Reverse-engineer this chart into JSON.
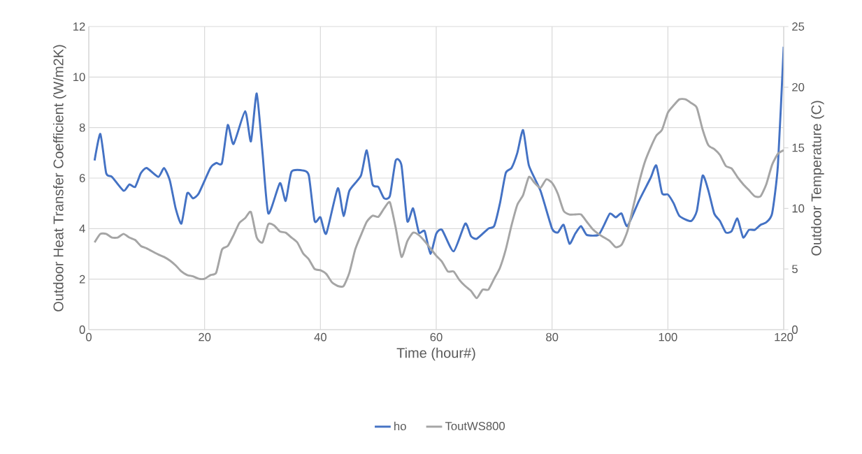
{
  "chart_data": {
    "type": "line",
    "xlabel": "Time (hour#)",
    "ylabel": "Outdoor Heat Transfer Coefficient (W/m2K)",
    "y2label": "Outdoor Temperature (C)",
    "xlim": [
      0,
      120
    ],
    "xticks": [
      0,
      20,
      40,
      60,
      80,
      100,
      120
    ],
    "ylim": [
      0,
      12
    ],
    "yticks": [
      0,
      2,
      4,
      6,
      8,
      10,
      12
    ],
    "y2lim": [
      0,
      25
    ],
    "y2ticks": [
      0,
      5,
      10,
      15,
      20,
      25
    ],
    "grid": true,
    "legend": "bottom",
    "series": [
      {
        "name": "ho",
        "color": "#4472c4",
        "x": [
          1,
          2,
          3,
          4,
          6,
          7,
          8,
          9,
          10,
          12,
          13,
          14,
          15,
          16,
          17,
          18,
          19,
          21,
          22,
          23,
          24,
          25,
          27,
          28,
          29,
          30,
          31,
          33,
          34,
          35,
          37,
          38,
          39,
          40,
          41,
          43,
          44,
          45,
          47,
          48,
          49,
          50,
          51,
          52,
          53,
          54,
          55,
          56,
          57,
          58,
          59,
          60,
          61,
          63,
          65,
          66,
          67,
          69,
          70,
          71,
          72,
          73,
          74,
          75,
          76,
          78,
          80,
          81,
          82,
          83,
          84,
          85,
          86,
          88,
          89,
          90,
          91,
          92,
          93,
          95,
          97,
          98,
          99,
          100,
          101,
          102,
          104,
          105,
          106,
          107,
          108,
          109,
          110,
          111,
          112,
          113,
          114,
          115,
          116,
          117,
          118,
          119,
          120
        ],
        "values": [
          6.7,
          7.75,
          6.2,
          6.05,
          5.5,
          5.75,
          5.65,
          6.2,
          6.4,
          6.05,
          6.4,
          5.9,
          4.8,
          4.2,
          5.4,
          5.2,
          5.4,
          6.4,
          6.6,
          6.6,
          8.1,
          7.35,
          8.65,
          7.45,
          9.35,
          7.0,
          4.6,
          5.8,
          5.1,
          6.25,
          6.3,
          6.1,
          4.3,
          4.45,
          3.8,
          5.6,
          4.5,
          5.5,
          6.1,
          7.1,
          5.75,
          5.65,
          5.2,
          5.3,
          6.7,
          6.5,
          4.3,
          4.8,
          3.85,
          3.9,
          3.0,
          3.8,
          3.95,
          3.1,
          4.2,
          3.7,
          3.6,
          4.0,
          4.1,
          5.0,
          6.2,
          6.4,
          7.0,
          7.9,
          6.5,
          5.5,
          4.0,
          3.85,
          4.15,
          3.4,
          3.8,
          4.1,
          3.75,
          3.75,
          4.15,
          4.6,
          4.45,
          4.6,
          4.1,
          5.1,
          6.0,
          6.5,
          5.4,
          5.35,
          5.0,
          4.5,
          4.3,
          4.7,
          6.1,
          5.5,
          4.6,
          4.3,
          3.85,
          3.9,
          4.4,
          3.65,
          3.95,
          3.95,
          4.15,
          4.25,
          4.6,
          6.5,
          11.2
        ]
      },
      {
        "name": "ToutWS800",
        "color": "#a5a5a5",
        "axis": "y2",
        "x": [
          1,
          2,
          3,
          4,
          5,
          6,
          7,
          8,
          9,
          10,
          12,
          13,
          14,
          15,
          16,
          17,
          18,
          19,
          20,
          21,
          22,
          23,
          24,
          25,
          26,
          27,
          28,
          29,
          30,
          31,
          32,
          33,
          34,
          35,
          36,
          37,
          38,
          39,
          40,
          41,
          42,
          43,
          44,
          45,
          46,
          47,
          48,
          49,
          50,
          51,
          52,
          53,
          54,
          55,
          56,
          57,
          58,
          59,
          60,
          61,
          62,
          63,
          64,
          65,
          66,
          67,
          68,
          69,
          70,
          71,
          72,
          73,
          74,
          75,
          76,
          77,
          78,
          79,
          80,
          81,
          82,
          83,
          84,
          85,
          86,
          87,
          88,
          89,
          90,
          91,
          92,
          93,
          94,
          95,
          96,
          97,
          98,
          99,
          100,
          101,
          102,
          103,
          104,
          105,
          106,
          107,
          108,
          109,
          110,
          111,
          112,
          113,
          114,
          115,
          116,
          117,
          118,
          119,
          120
        ],
        "values": [
          7.2,
          7.9,
          7.9,
          7.6,
          7.6,
          7.9,
          7.6,
          7.4,
          6.9,
          6.7,
          6.2,
          6.0,
          5.7,
          5.3,
          4.8,
          4.5,
          4.4,
          4.2,
          4.2,
          4.5,
          4.7,
          6.6,
          6.9,
          7.8,
          8.8,
          9.2,
          9.7,
          7.6,
          7.2,
          8.7,
          8.6,
          8.1,
          8.0,
          7.6,
          7.2,
          6.3,
          5.8,
          5.0,
          4.9,
          4.6,
          3.9,
          3.6,
          3.6,
          4.7,
          6.6,
          7.8,
          8.9,
          9.4,
          9.3,
          10.0,
          10.5,
          8.4,
          6.0,
          7.3,
          8.0,
          7.8,
          7.3,
          6.7,
          6.1,
          5.6,
          4.8,
          4.8,
          4.1,
          3.6,
          3.2,
          2.6,
          3.3,
          3.3,
          4.2,
          5.1,
          6.6,
          8.6,
          10.3,
          11.1,
          12.6,
          12.1,
          11.7,
          12.4,
          12.1,
          11.2,
          9.8,
          9.5,
          9.5,
          9.5,
          8.9,
          8.3,
          7.9,
          7.6,
          7.3,
          6.8,
          7.0,
          8.1,
          10.1,
          12.1,
          13.8,
          15.0,
          16.0,
          16.5,
          17.9,
          18.5,
          19.0,
          19.0,
          18.7,
          18.3,
          16.5,
          15.2,
          14.9,
          14.4,
          13.5,
          13.3,
          12.6,
          12.0,
          11.5,
          11.0,
          11.0,
          12.0,
          13.6,
          14.5,
          14.8
        ]
      }
    ]
  }
}
